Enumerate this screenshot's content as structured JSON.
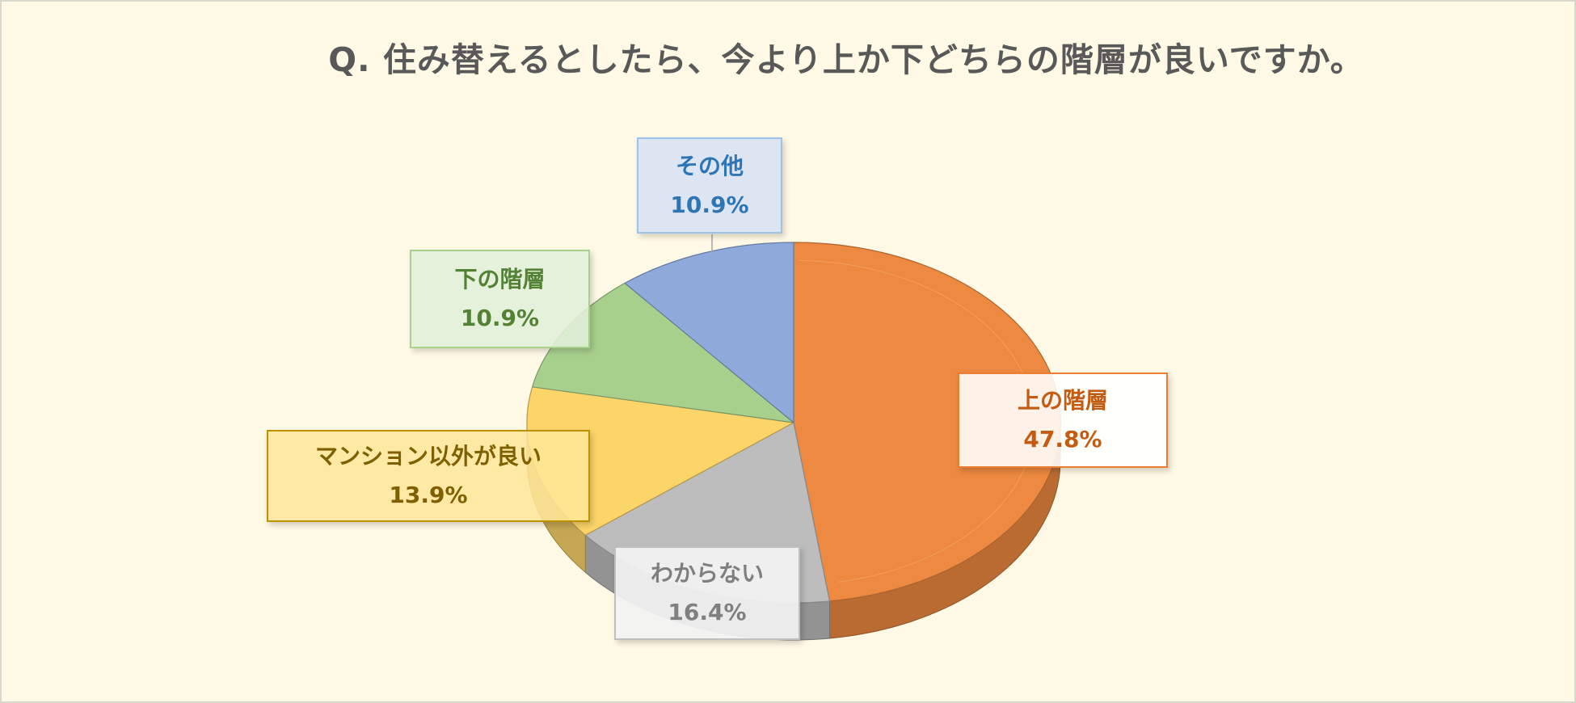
{
  "title": "Q. 住み替えるとしたら、今より上か下どちらの階層が良いですか。",
  "chart_data": {
    "type": "pie",
    "title": "Q. 住み替えるとしたら、今より上か下どちらの階層が良いですか。",
    "unit": "%",
    "slices": [
      {
        "name": "上の階層",
        "value": 47.8,
        "label": "47.8%",
        "color": "#ed8940"
      },
      {
        "name": "わからない",
        "value": 16.4,
        "label": "16.4%",
        "color": "#bdbdbd"
      },
      {
        "name": "マンション以外が良い",
        "value": 13.9,
        "label": "13.9%",
        "color": "#fcd56a"
      },
      {
        "name": "下の階層",
        "value": 10.9,
        "label": "10.9%",
        "color": "#a8d08d"
      },
      {
        "name": "その他",
        "value": 10.9,
        "label": "10.9%",
        "color": "#8eaadb"
      }
    ]
  }
}
